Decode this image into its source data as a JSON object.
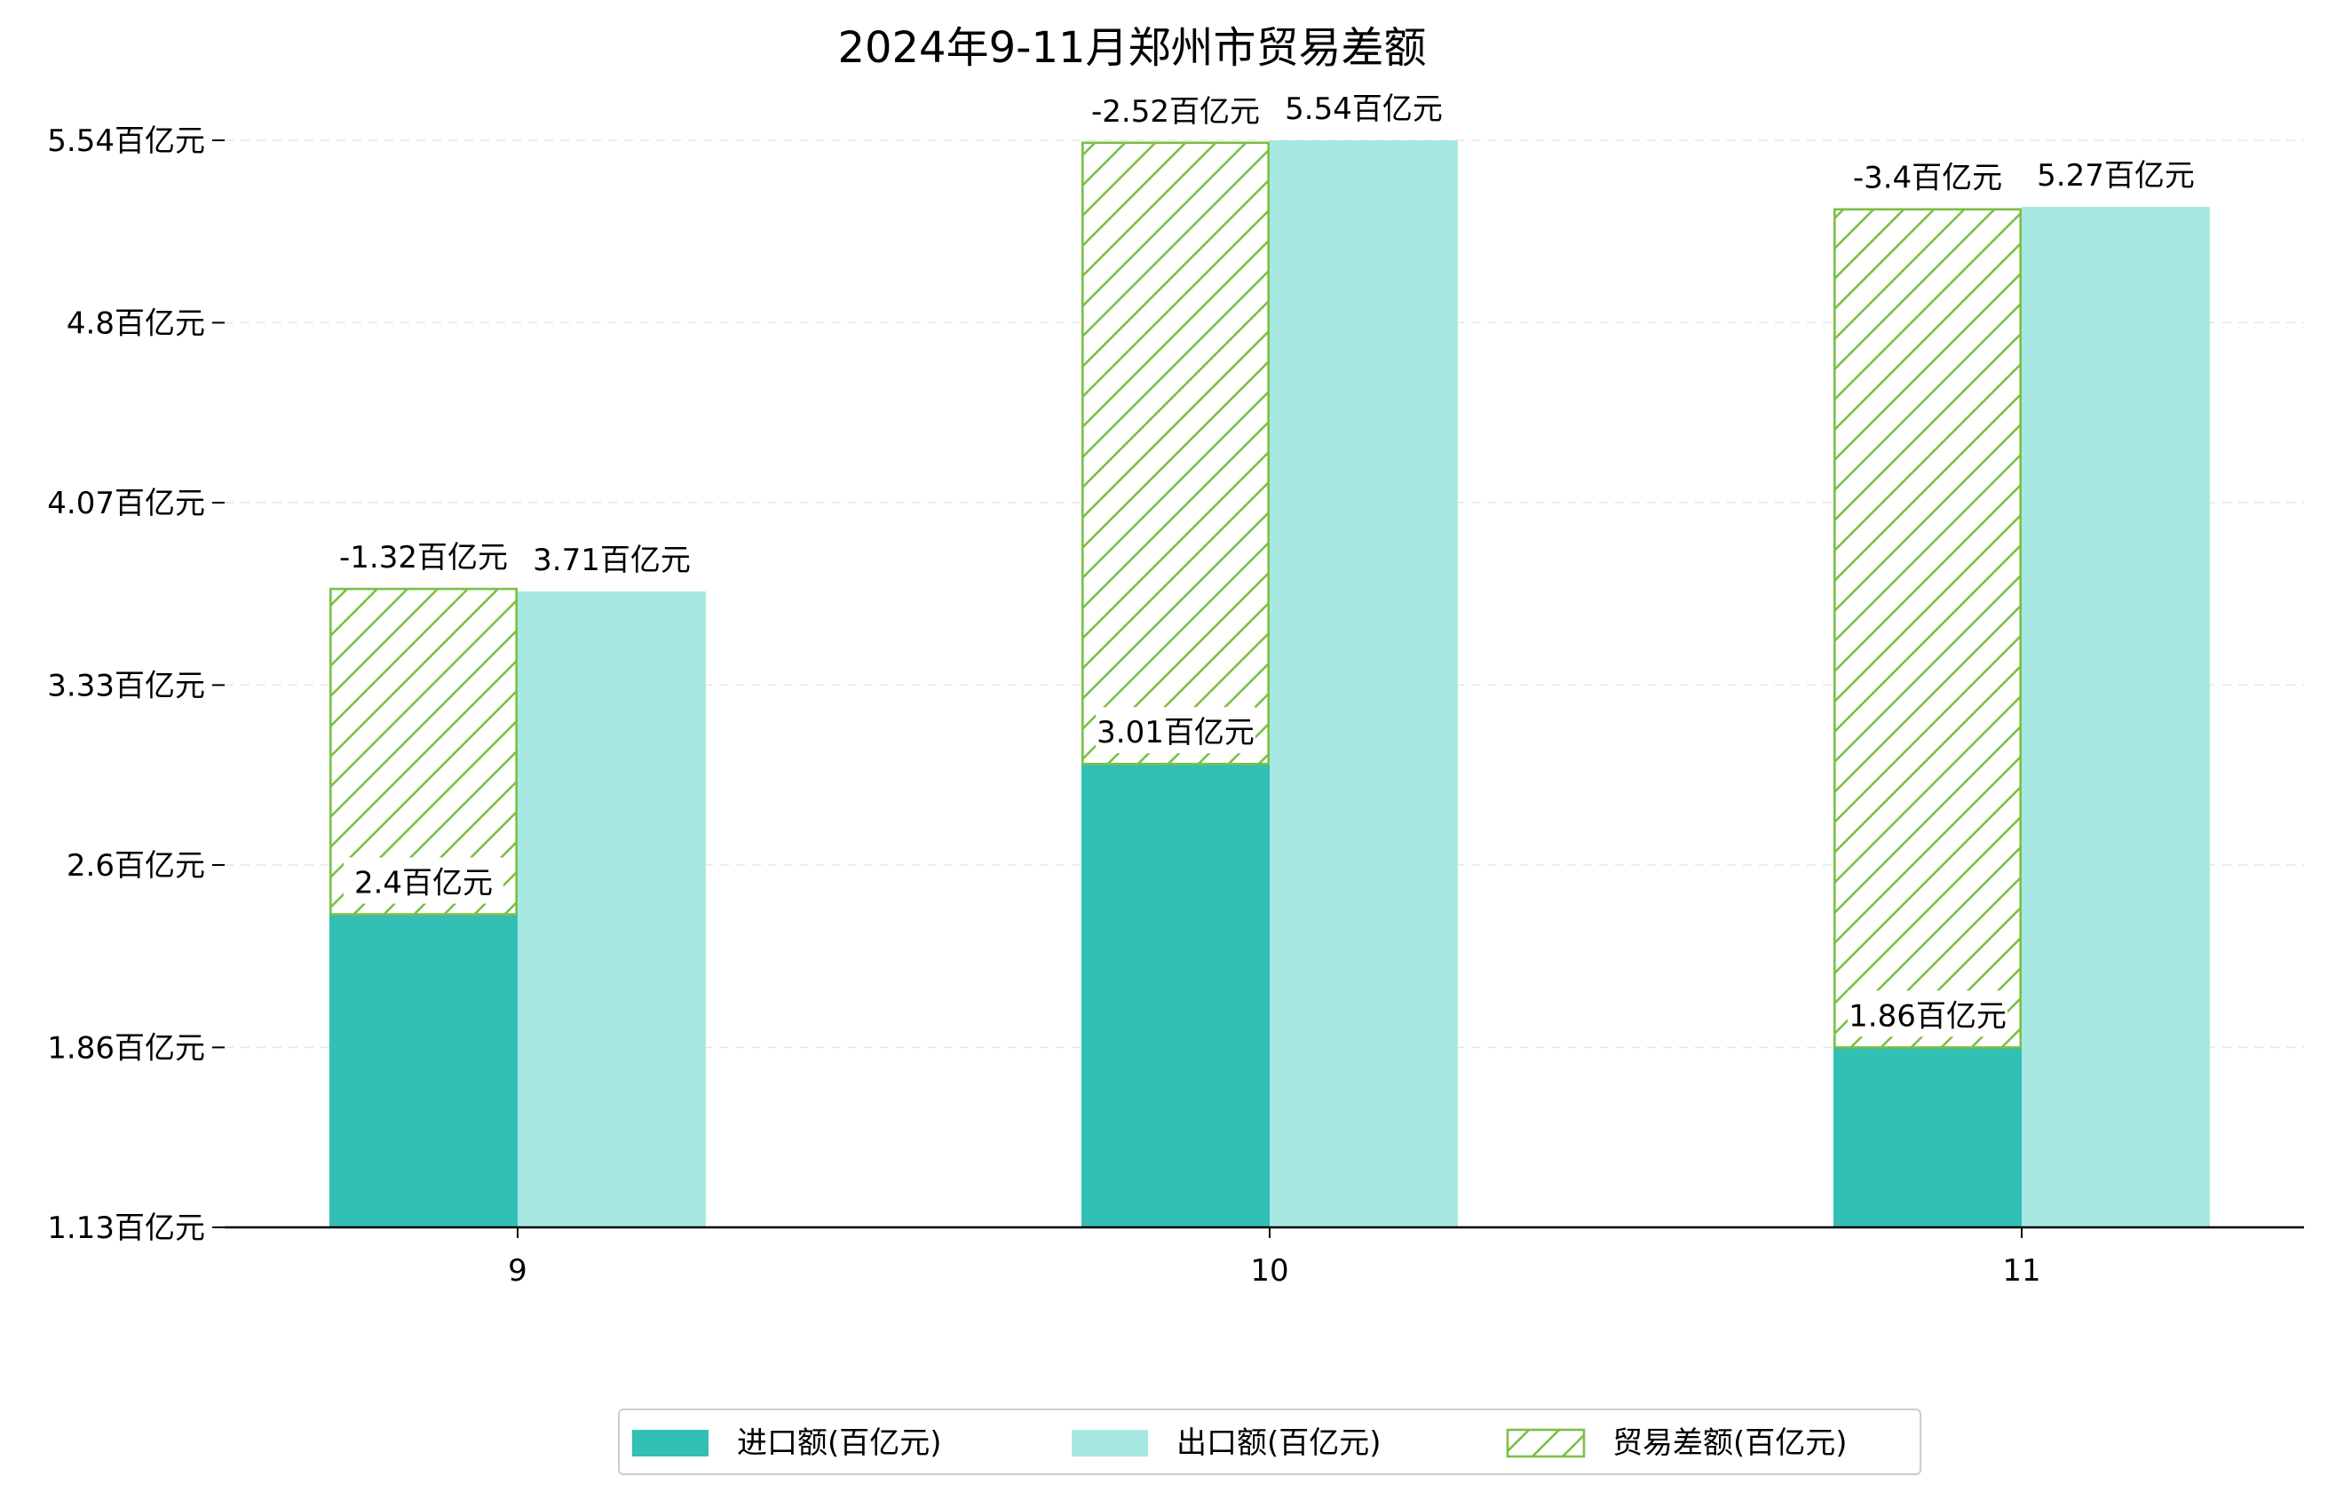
{
  "chart_data": {
    "type": "bar",
    "title": "2024年9-11月郑州市贸易差额",
    "xlabel": "",
    "ylabel": "",
    "categories": [
      "9",
      "10",
      "11"
    ],
    "y_unit": "百亿元",
    "ylim": [
      1.13,
      5.54
    ],
    "yticks": [
      1.13,
      1.86,
      2.6,
      3.33,
      4.07,
      4.8,
      5.54
    ],
    "ytick_labels": [
      "1.13百亿元",
      "1.86百亿元",
      "2.6百亿元",
      "3.33百亿元",
      "4.07百亿元",
      "4.8百亿元",
      "5.54百亿元"
    ],
    "grid": true,
    "legend_position": "bottom-center",
    "series": [
      {
        "name": "进口额(百亿元)",
        "values": [
          2.4,
          3.01,
          1.86
        ],
        "labels": [
          "2.4百亿元",
          "3.01百亿元",
          "1.86百亿元"
        ],
        "color": "#32bfb4"
      },
      {
        "name": "出口额(百亿元)",
        "values": [
          3.71,
          5.54,
          5.27
        ],
        "labels": [
          "3.71百亿元",
          "5.54百亿元",
          "5.27百亿元"
        ],
        "color": "#a8e8e2"
      },
      {
        "name": "贸易差额(百亿元)",
        "values": [
          -1.32,
          -2.52,
          -3.4
        ],
        "labels": [
          "-1.32百亿元",
          "-2.52百亿元",
          "-3.4百亿元"
        ],
        "color": "#7cbf46",
        "pattern": "hatch"
      }
    ]
  }
}
